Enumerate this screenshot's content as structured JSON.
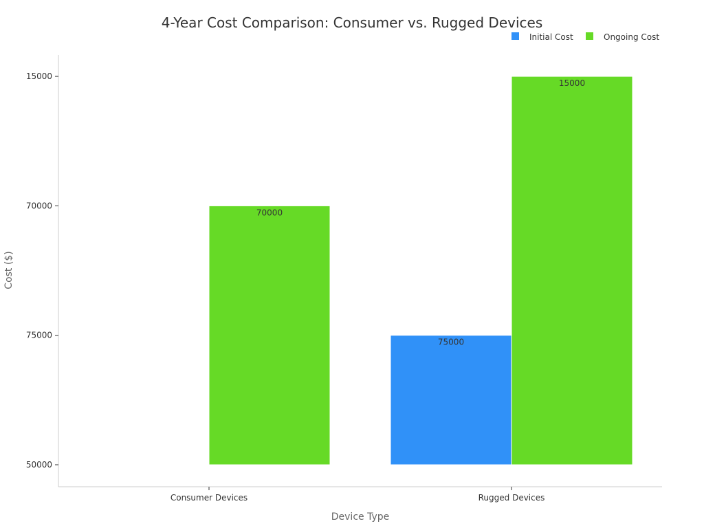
{
  "chart_data": {
    "type": "bar",
    "title": "4-Year Cost Comparison: Consumer vs. Rugged Devices",
    "xlabel": "Device Type",
    "ylabel": "Cost ($)",
    "y_axis_kind": "categorical",
    "y_categories": [
      "50000",
      "75000",
      "70000",
      "15000"
    ],
    "categories": [
      "Consumer Devices",
      "Rugged Devices"
    ],
    "series": [
      {
        "name": "Initial Cost",
        "color": "#3091f8",
        "values": [
          "50000",
          "75000"
        ],
        "labels": [
          null,
          "75000"
        ]
      },
      {
        "name": "Ongoing Cost",
        "color": "#66da26",
        "values": [
          "70000",
          "15000"
        ],
        "labels": [
          "70000",
          "15000"
        ]
      }
    ],
    "legend_position": "top-right",
    "grid": false
  }
}
